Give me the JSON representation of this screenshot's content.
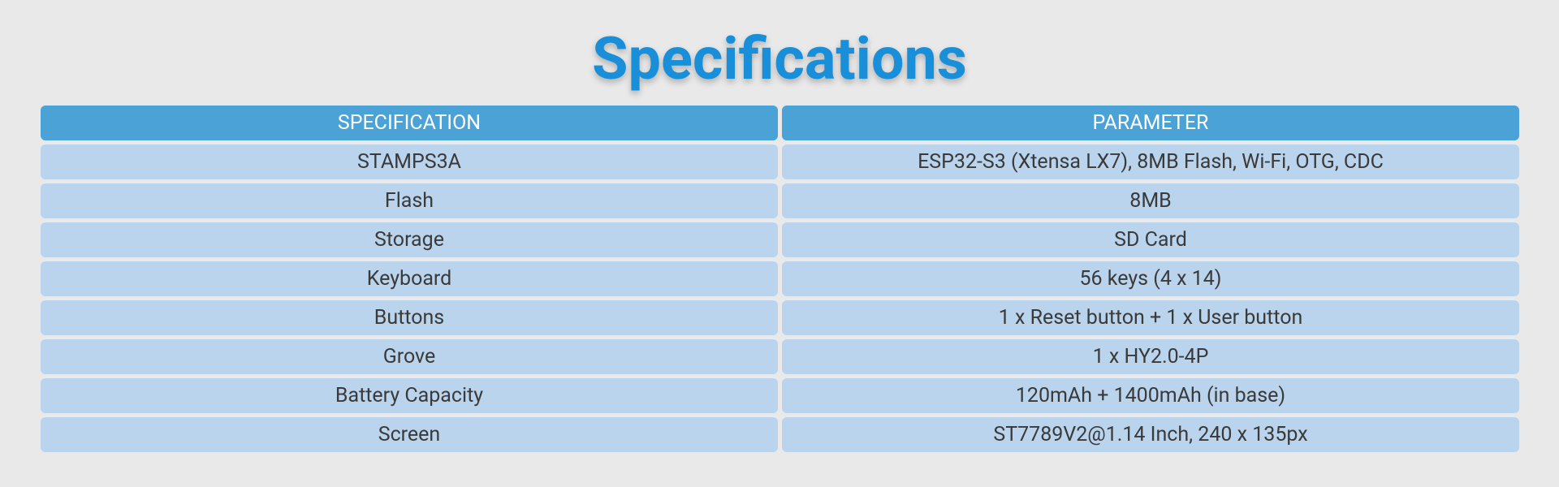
{
  "header": {
    "title": "Specifications"
  },
  "table": {
    "headers": [
      "SPECIFICATION",
      "PARAMETER"
    ],
    "rows": [
      [
        "STAMPS3A",
        "ESP32-S3 (Xtensa LX7), 8MB Flash, Wi-Fi, OTG, CDC"
      ],
      [
        "Flash",
        "8MB"
      ],
      [
        "Storage",
        "SD Card"
      ],
      [
        "Keyboard",
        "56 keys (4 x 14)"
      ],
      [
        "Buttons",
        "1 x Reset button + 1 x User button"
      ],
      [
        "Grove",
        "1 x HY2.0-4P"
      ],
      [
        "Battery Capacity",
        "120mAh + 1400mAh (in base)"
      ],
      [
        "Screen",
        "ST7789V2@1.14 Inch, 240 x 135px"
      ]
    ]
  }
}
